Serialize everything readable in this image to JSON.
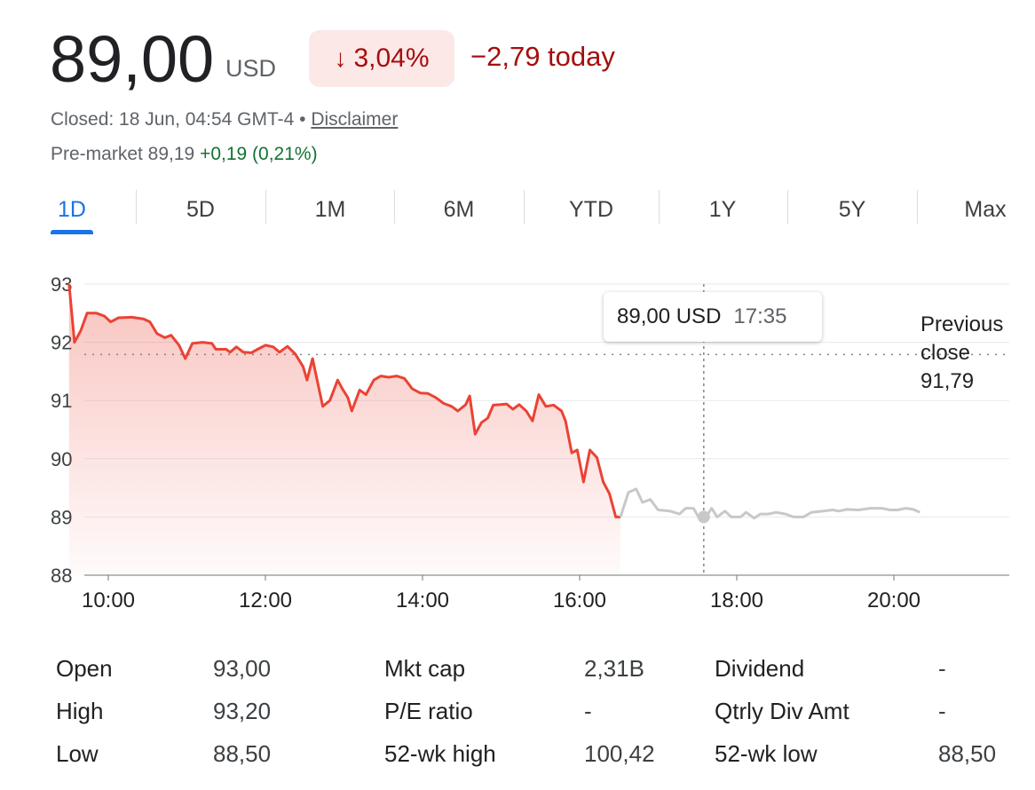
{
  "quote": {
    "price": "89,00",
    "currency": "USD",
    "change_pct": "3,04%",
    "change_today": "−2,79 today",
    "arrow_icon": "↓",
    "closed_text": "Closed: 18 Jun, 04:54 GMT-4 • ",
    "disclaimer": "Disclaimer",
    "premarket_label": "Pre-market 89,19 ",
    "premarket_change": "+0,19 (0,21%)"
  },
  "tabs": [
    "1D",
    "5D",
    "1M",
    "6M",
    "YTD",
    "1Y",
    "5Y",
    "Max"
  ],
  "active_tab": "1D",
  "tooltip": {
    "price": "89,00 USD",
    "time": "17:35"
  },
  "previous_close": {
    "line1": "Previous",
    "line2": "close",
    "value": "91,79"
  },
  "colors": {
    "down": "#ea4335",
    "down_text": "#a50e0e",
    "up_text": "#137333",
    "after_hours": "#c8c8c8",
    "accent": "#1a73e8"
  },
  "chart_data": {
    "type": "line",
    "x_unit": "time of day (hours)",
    "xlim": [
      9.5,
      21.4
    ],
    "ylim": [
      88,
      93
    ],
    "y_ticks": [
      93,
      92,
      91,
      90,
      89,
      88
    ],
    "x_ticks": [
      "10:00",
      "12:00",
      "14:00",
      "16:00",
      "18:00",
      "20:00"
    ],
    "x_tick_values": [
      10,
      12,
      14,
      16,
      18,
      20
    ],
    "previous_close": 91.79,
    "cursor": {
      "time": 17.58,
      "value": 89.0
    },
    "series": [
      {
        "segment": "regular",
        "points": [
          [
            9.5,
            93.0
          ],
          [
            9.57,
            92.0
          ],
          [
            9.65,
            92.2
          ],
          [
            9.73,
            92.5
          ],
          [
            9.85,
            92.5
          ],
          [
            9.95,
            92.45
          ],
          [
            10.03,
            92.35
          ],
          [
            10.13,
            92.42
          ],
          [
            10.3,
            92.43
          ],
          [
            10.45,
            92.4
          ],
          [
            10.53,
            92.35
          ],
          [
            10.62,
            92.15
          ],
          [
            10.72,
            92.08
          ],
          [
            10.8,
            92.12
          ],
          [
            10.9,
            91.95
          ],
          [
            10.98,
            91.72
          ],
          [
            11.07,
            91.98
          ],
          [
            11.2,
            92.0
          ],
          [
            11.32,
            91.98
          ],
          [
            11.37,
            91.88
          ],
          [
            11.5,
            91.88
          ],
          [
            11.55,
            91.83
          ],
          [
            11.63,
            91.92
          ],
          [
            11.72,
            91.83
          ],
          [
            11.82,
            91.82
          ],
          [
            11.9,
            91.88
          ],
          [
            12.0,
            91.95
          ],
          [
            12.1,
            91.92
          ],
          [
            12.18,
            91.83
          ],
          [
            12.28,
            91.93
          ],
          [
            12.38,
            91.8
          ],
          [
            12.48,
            91.58
          ],
          [
            12.53,
            91.35
          ],
          [
            12.6,
            91.72
          ],
          [
            12.73,
            90.9
          ],
          [
            12.82,
            91.0
          ],
          [
            12.92,
            91.35
          ],
          [
            12.98,
            91.2
          ],
          [
            13.05,
            91.05
          ],
          [
            13.1,
            90.82
          ],
          [
            13.2,
            91.18
          ],
          [
            13.28,
            91.1
          ],
          [
            13.38,
            91.35
          ],
          [
            13.47,
            91.42
          ],
          [
            13.57,
            91.4
          ],
          [
            13.67,
            91.42
          ],
          [
            13.77,
            91.38
          ],
          [
            13.87,
            91.2
          ],
          [
            13.97,
            91.13
          ],
          [
            14.07,
            91.12
          ],
          [
            14.17,
            91.05
          ],
          [
            14.27,
            90.95
          ],
          [
            14.37,
            90.9
          ],
          [
            14.45,
            90.82
          ],
          [
            14.55,
            90.93
          ],
          [
            14.6,
            91.08
          ],
          [
            14.67,
            90.42
          ],
          [
            14.75,
            90.62
          ],
          [
            14.83,
            90.7
          ],
          [
            14.9,
            90.92
          ],
          [
            15.0,
            90.93
          ],
          [
            15.07,
            90.94
          ],
          [
            15.15,
            90.85
          ],
          [
            15.23,
            90.93
          ],
          [
            15.32,
            90.82
          ],
          [
            15.4,
            90.65
          ],
          [
            15.48,
            91.1
          ],
          [
            15.57,
            90.9
          ],
          [
            15.67,
            90.92
          ],
          [
            15.77,
            90.82
          ],
          [
            15.82,
            90.65
          ],
          [
            15.9,
            90.1
          ],
          [
            15.97,
            90.15
          ],
          [
            16.05,
            89.6
          ],
          [
            16.13,
            90.15
          ],
          [
            16.22,
            90.02
          ],
          [
            16.3,
            89.6
          ],
          [
            16.38,
            89.4
          ],
          [
            16.46,
            89.0
          ],
          [
            16.52,
            89.0
          ]
        ]
      },
      {
        "segment": "after_hours",
        "points": [
          [
            16.52,
            89.0
          ],
          [
            16.62,
            89.42
          ],
          [
            16.72,
            89.48
          ],
          [
            16.8,
            89.25
          ],
          [
            16.9,
            89.3
          ],
          [
            17.0,
            89.12
          ],
          [
            17.15,
            89.1
          ],
          [
            17.27,
            89.05
          ],
          [
            17.35,
            89.15
          ],
          [
            17.45,
            89.15
          ],
          [
            17.52,
            88.98
          ],
          [
            17.6,
            88.98
          ],
          [
            17.68,
            89.15
          ],
          [
            17.75,
            89.0
          ],
          [
            17.85,
            89.1
          ],
          [
            17.93,
            89.0
          ],
          [
            18.05,
            89.0
          ],
          [
            18.12,
            89.08
          ],
          [
            18.22,
            88.98
          ],
          [
            18.3,
            89.05
          ],
          [
            18.4,
            89.05
          ],
          [
            18.5,
            89.08
          ],
          [
            18.62,
            89.05
          ],
          [
            18.72,
            89.0
          ],
          [
            18.85,
            89.0
          ],
          [
            18.95,
            89.08
          ],
          [
            19.1,
            89.1
          ],
          [
            19.22,
            89.12
          ],
          [
            19.3,
            89.1
          ],
          [
            19.4,
            89.13
          ],
          [
            19.55,
            89.12
          ],
          [
            19.7,
            89.15
          ],
          [
            19.85,
            89.15
          ],
          [
            19.95,
            89.12
          ],
          [
            20.05,
            89.12
          ],
          [
            20.15,
            89.15
          ],
          [
            20.25,
            89.13
          ],
          [
            20.33,
            89.08
          ]
        ]
      }
    ]
  },
  "stats": {
    "col1": [
      {
        "label": "Open",
        "value": "93,00"
      },
      {
        "label": "High",
        "value": "93,20"
      },
      {
        "label": "Low",
        "value": "88,50"
      }
    ],
    "col2": [
      {
        "label": "Mkt cap",
        "value": "2,31B"
      },
      {
        "label": "P/E ratio",
        "value": "-"
      },
      {
        "label": "52-wk high",
        "value": "100,42"
      }
    ],
    "col3": [
      {
        "label": "Dividend",
        "value": "-"
      },
      {
        "label": "Qtrly Div Amt",
        "value": "-"
      },
      {
        "label": "52-wk low",
        "value": "88,50"
      }
    ]
  }
}
